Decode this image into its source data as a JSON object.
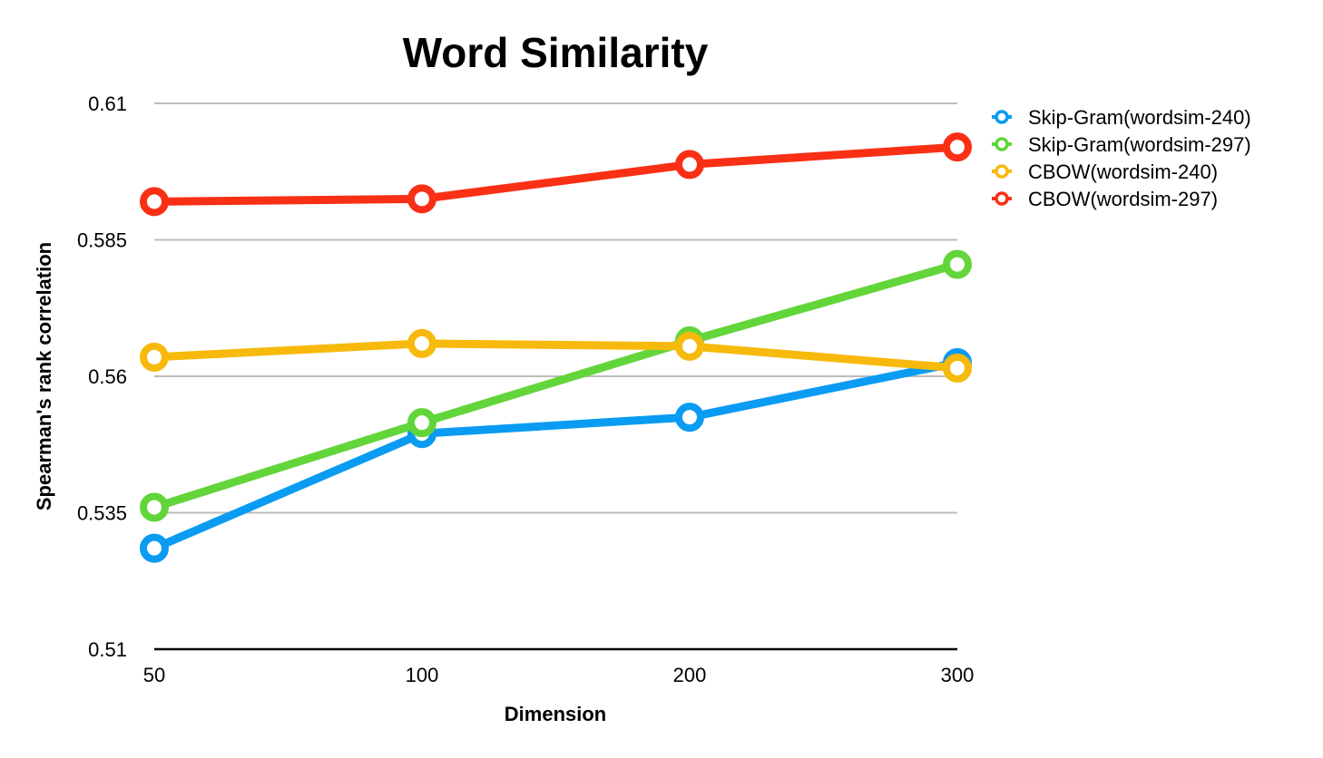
{
  "chart_data": {
    "type": "line",
    "title": "Word Similarity",
    "xlabel": "Dimension",
    "ylabel": "Spearman's rank correlation",
    "categories": [
      "50",
      "100",
      "200",
      "300"
    ],
    "y_ticks": [
      "0.51",
      "0.535",
      "0.56",
      "0.585",
      "0.61"
    ],
    "ylim": [
      0.51,
      0.61
    ],
    "grid": true,
    "legend_position": "top-right",
    "series": [
      {
        "name": "Skip-Gram(wordsim-240)",
        "color": "#0A9BF2",
        "values": [
          0.5285,
          0.5495,
          0.5525,
          0.5625
        ]
      },
      {
        "name": "Skip-Gram(wordsim-297)",
        "color": "#62D53A",
        "values": [
          0.536,
          0.5515,
          0.5665,
          0.5805
        ]
      },
      {
        "name": "CBOW(wordsim-240)",
        "color": "#F7B90C",
        "values": [
          0.5635,
          0.566,
          0.5655,
          0.5615
        ]
      },
      {
        "name": "CBOW(wordsim-297)",
        "color": "#F93015",
        "values": [
          0.592,
          0.5925,
          0.5988,
          0.602
        ]
      }
    ]
  }
}
